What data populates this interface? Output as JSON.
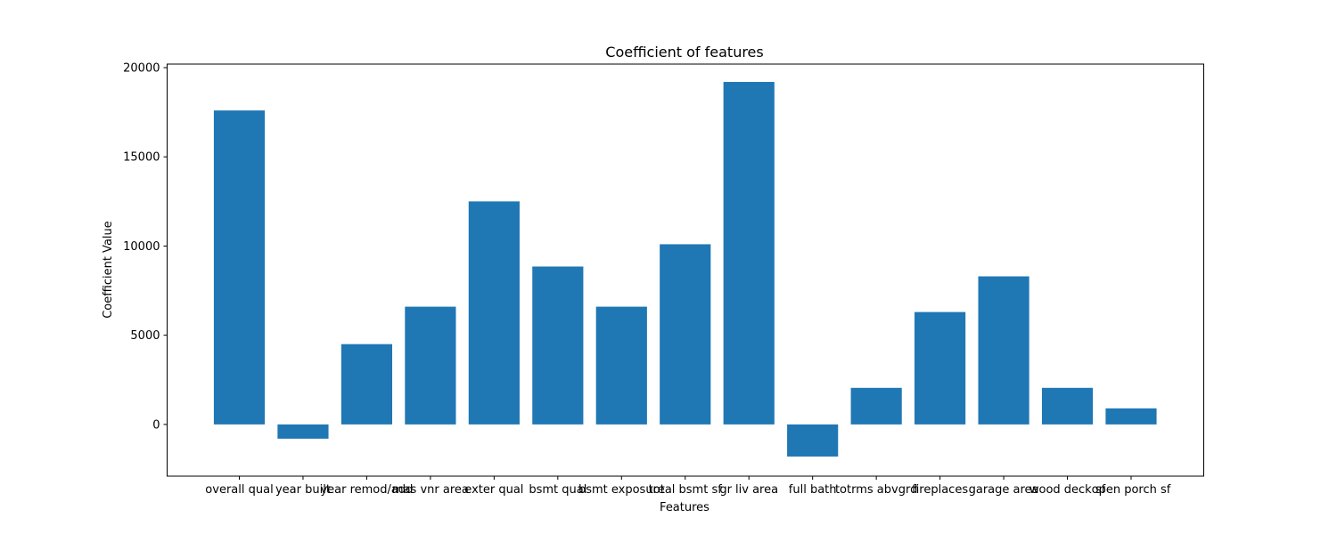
{
  "chart_data": {
    "type": "bar",
    "title": "Coefficient of features",
    "xlabel": "Features",
    "ylabel": "Coefficient Value",
    "categories": [
      "overall qual",
      "year built",
      "year remod/add",
      "mas vnr area",
      "exter qual",
      "bsmt qual",
      "bsmt exposure",
      "total bsmt sf",
      "gr liv area",
      "full bath",
      "totrms abvgrd",
      "fireplaces",
      "garage area",
      "wood deck sf",
      "open porch sf"
    ],
    "values": [
      17600,
      -800,
      4500,
      6600,
      12500,
      8850,
      6600,
      10100,
      19200,
      -1800,
      2050,
      6300,
      8300,
      2050,
      900
    ],
    "ylim": [
      -2900,
      20200
    ],
    "yticks": [
      0,
      5000,
      10000,
      15000,
      20000
    ],
    "grid": false,
    "bar_color": "#1f77b4"
  }
}
